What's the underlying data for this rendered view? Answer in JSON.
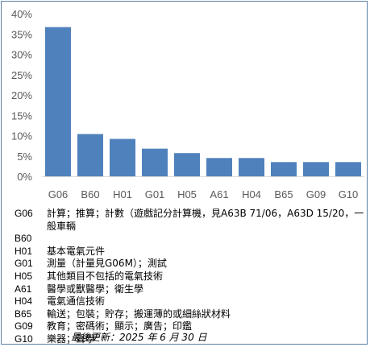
{
  "chart_data": {
    "type": "bar",
    "categories": [
      "G06",
      "B60",
      "H01",
      "G01",
      "H05",
      "A61",
      "H04",
      "B65",
      "G09",
      "G10"
    ],
    "values": [
      36.7,
      10.4,
      9.2,
      6.8,
      5.7,
      4.5,
      4.5,
      3.5,
      3.5,
      3.5
    ],
    "ylim": [
      0,
      40
    ],
    "yticks": [
      "0%",
      "5%",
      "10%",
      "15%",
      "20%",
      "25%",
      "30%",
      "35%",
      "40%"
    ],
    "grid": false,
    "bar_color": "#4f81bd"
  },
  "legend": [
    {
      "code": "G06",
      "desc": "計算；推算；計數（遊戲記分計算機，見A63B 71/06，A63D 15/20，一般車輛"
    },
    {
      "code": "B60",
      "desc": ""
    },
    {
      "code": "H01",
      "desc": "基本電氣元件"
    },
    {
      "code": "G01",
      "desc": "測量（計量見G06M）；測試"
    },
    {
      "code": "H05",
      "desc": "其他類目不包括的電氣技術"
    },
    {
      "code": "A61",
      "desc": "醫學或獸醫學；衛生學"
    },
    {
      "code": "H04",
      "desc": "電氣通信技術"
    },
    {
      "code": "B65",
      "desc": "輸送；包裝；貯存；搬運薄的或細絲狀材料"
    },
    {
      "code": "G09",
      "desc": "教育；密碼術；顯示；廣告；印鑑"
    },
    {
      "code": "G10",
      "desc": "樂器；聲學"
    }
  ],
  "updated": "最後更新：2025 年 6 月 30 日"
}
